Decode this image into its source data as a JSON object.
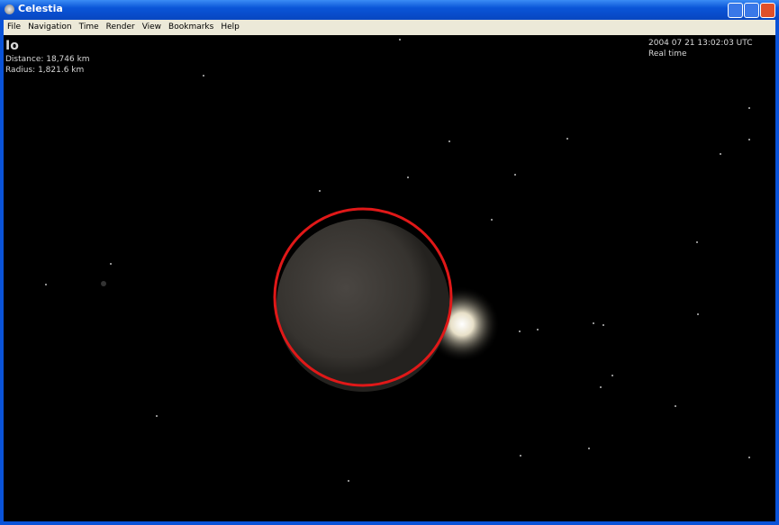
{
  "window": {
    "title": "Celestia"
  },
  "menu": [
    "File",
    "Navigation",
    "Time",
    "Render",
    "View",
    "Bookmarks",
    "Help"
  ],
  "overlay": {
    "object_name": "Io",
    "distance": "Distance: 18,746 km",
    "radius": "Radius: 1,821.6 km",
    "datetime": "2004 07 21 13:02:03 UTC",
    "time_mode": "Real time"
  }
}
